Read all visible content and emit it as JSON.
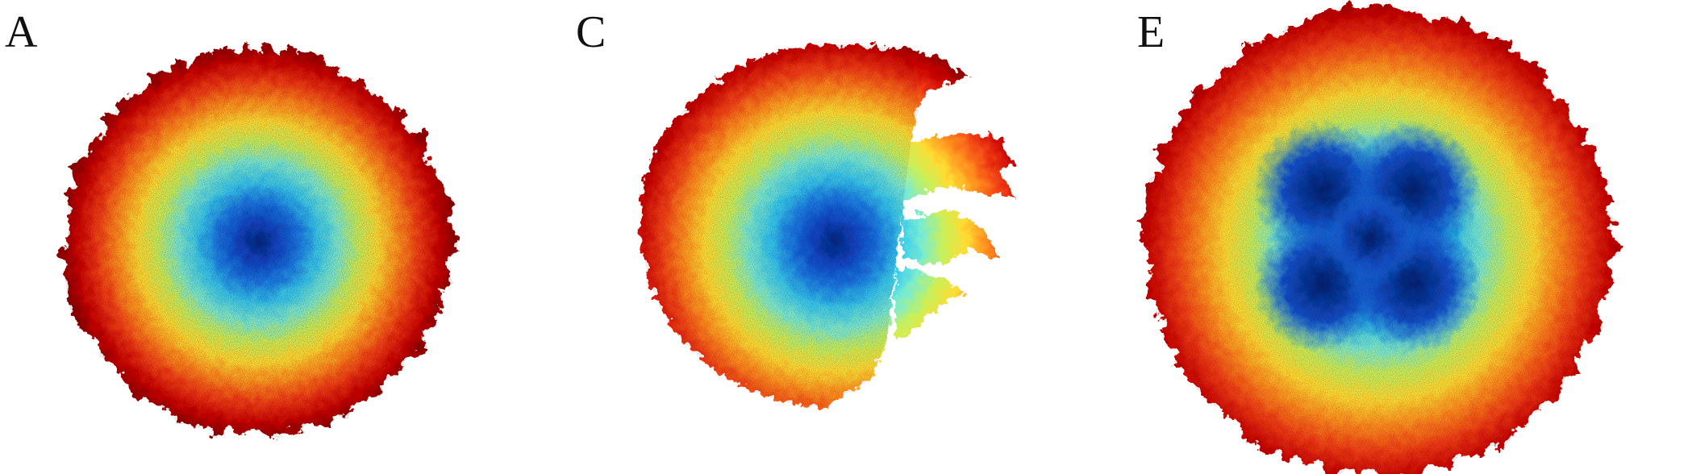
{
  "panels": [
    {
      "label": "A",
      "shape": "single-center colony"
    },
    {
      "label": "C",
      "shape": "colony with branched fingers on right"
    },
    {
      "label": "E",
      "shape": "four-center merged colony"
    }
  ],
  "colormap": [
    "#7a0000",
    "#c80000",
    "#f03c14",
    "#ff8c1e",
    "#ffdc32",
    "#c8f05a",
    "#78ebd2",
    "#32c8f0",
    "#1478e6",
    "#0a46c8",
    "#002880"
  ],
  "background_color": "#ffffff"
}
